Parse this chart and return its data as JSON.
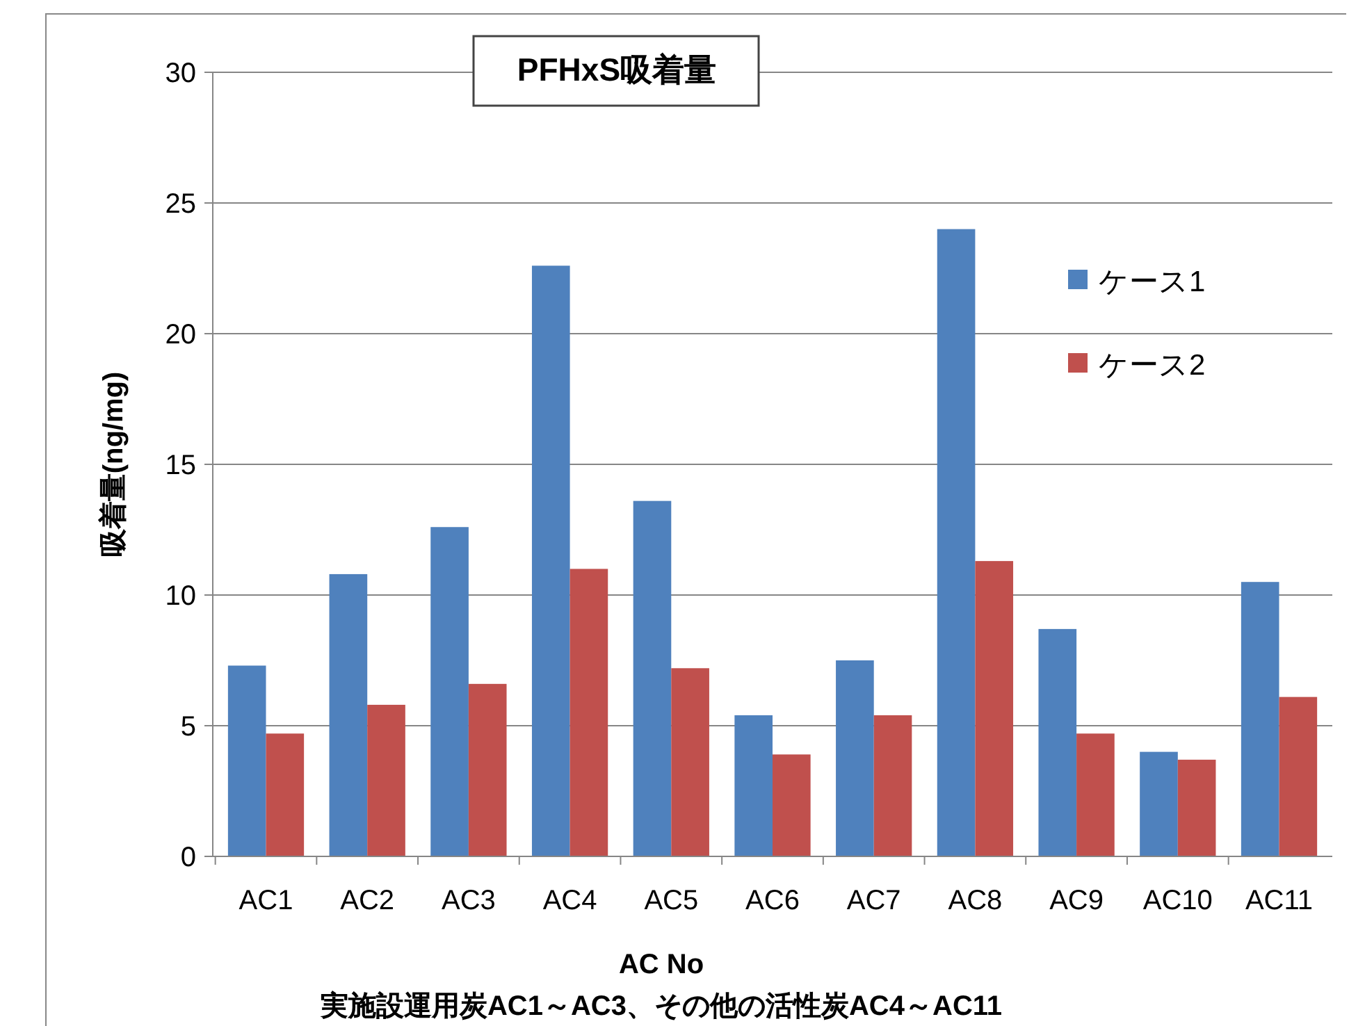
{
  "chart_data": {
    "type": "bar",
    "title": "PFHxS吸着量",
    "xlabel": "AC No",
    "ylabel": "吸着量(ng/mg)",
    "annotations": [
      "実施設運用炭AC1～AC3、その他の活性炭AC4～AC11"
    ],
    "categories": [
      "AC1",
      "AC2",
      "AC3",
      "AC4",
      "AC5",
      "AC6",
      "AC7",
      "AC8",
      "AC9",
      "AC10",
      "AC11"
    ],
    "series": [
      {
        "name": "ケース1",
        "color": "#4f81bd",
        "values": [
          7.3,
          10.8,
          12.6,
          22.6,
          13.6,
          5.4,
          7.5,
          24.0,
          8.7,
          4.0,
          10.5
        ]
      },
      {
        "name": "ケース2",
        "color": "#c0504d",
        "values": [
          4.7,
          5.8,
          6.6,
          11.0,
          7.2,
          3.9,
          5.4,
          11.3,
          4.7,
          3.7,
          6.1
        ]
      }
    ],
    "ylim": [
      0,
      30
    ],
    "yticks": [
      0,
      5,
      10,
      15,
      20,
      25,
      30
    ],
    "grid": "y",
    "legend": "top right"
  }
}
